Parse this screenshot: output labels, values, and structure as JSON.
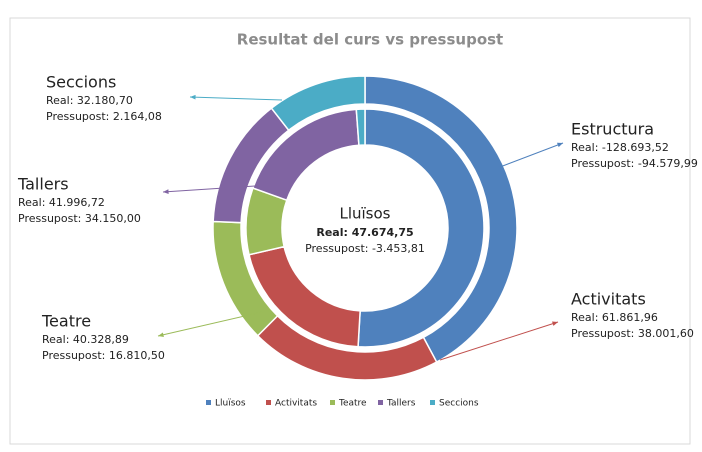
{
  "chart_data": {
    "type": "donut",
    "title": "Resultat del curs vs pressupost",
    "categories": [
      "Lluïsos",
      "Activitats",
      "Teatre",
      "Tallers",
      "Seccions"
    ],
    "colors": [
      "#4f81bd",
      "#c0504d",
      "#9bbb59",
      "#8064a2",
      "#4bacc6"
    ],
    "series": [
      {
        "values": [
          128693.52,
          61861.96,
          40328.89,
          41996.72,
          32180.7
        ]
      },
      {
        "values": [
          94579.99,
          38001.6,
          16810.5,
          34150.0,
          2164.08
        ]
      }
    ],
    "center": {
      "title": "Lluïsos",
      "real": "Real: 47.674,75",
      "budget": "Pressupost: -3.453,81"
    },
    "annotations": [
      {
        "title": "Estructura",
        "real": "Real: -128.693,52",
        "budget": "Pressupost: -94.579,99"
      },
      {
        "title": "Activitats",
        "real": "Real: 61.861,96",
        "budget": "Pressupost: 38.001,60"
      },
      {
        "title": "Teatre",
        "real": "Real: 40.328,89",
        "budget": "Pressupost: 16.810,50"
      },
      {
        "title": "Tallers",
        "real": "Real: 41.996,72",
        "budget": "Pressupost: 34.150,00"
      },
      {
        "title": "Seccions",
        "real": "Real: 32.180,70",
        "budget": "Pressupost: 2.164,08"
      }
    ],
    "legend": "bottom"
  }
}
